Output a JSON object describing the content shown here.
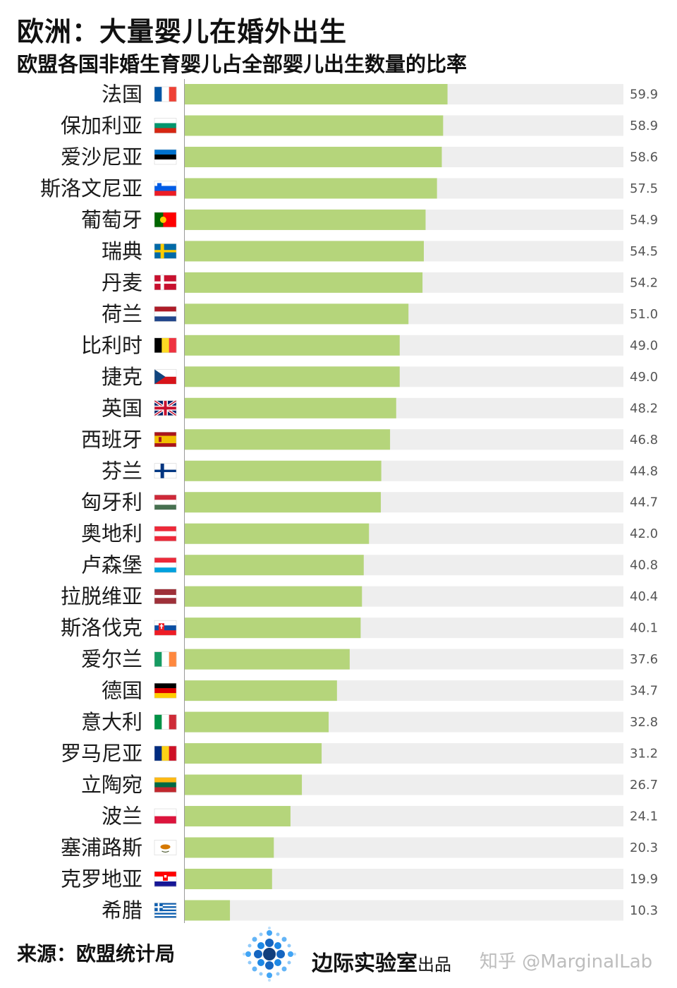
{
  "title": "欧洲：大量婴儿在婚外出生",
  "subtitle": "欧盟各国非婚生育婴儿占全部婴儿出生数量的比率",
  "chart_data": {
    "type": "bar",
    "orientation": "horizontal",
    "title": "欧盟各国非婚生育婴儿占全部婴儿出生数量的比率",
    "xlim": [
      0,
      100
    ],
    "bar_color": "#b5d57b",
    "track_color": "#eeeeee",
    "categories": [
      "法国",
      "保加利亚",
      "爱沙尼亚",
      "斯洛文尼亚",
      "葡萄牙",
      "瑞典",
      "丹麦",
      "荷兰",
      "比利时",
      "捷克",
      "英国",
      "西班牙",
      "芬兰",
      "匈牙利",
      "奥地利",
      "卢森堡",
      "拉脱维亚",
      "斯洛伐克",
      "爱尔兰",
      "德国",
      "意大利",
      "罗马尼亚",
      "立陶宛",
      "波兰",
      "塞浦路斯",
      "克罗地亚",
      "希腊"
    ],
    "value_labels": [
      "59.9",
      "58.9",
      "58.6",
      "57.5",
      "54.9",
      "54.5",
      "54.2",
      "51.0",
      "49.0",
      "49.0",
      "48.2",
      "46.8",
      "44.8",
      "44.7",
      "42.0",
      "40.8",
      "40.4",
      "40.1",
      "37.6",
      "34.7",
      "32.8",
      "31.2",
      "26.7",
      "24.1",
      "20.3",
      "19.9",
      "10.3"
    ],
    "values": [
      59.9,
      58.9,
      58.6,
      57.5,
      54.9,
      54.5,
      54.2,
      51.0,
      49.0,
      49.0,
      48.2,
      46.8,
      44.8,
      44.7,
      42.0,
      40.8,
      40.4,
      40.1,
      37.6,
      34.7,
      32.8,
      31.2,
      26.7,
      24.1,
      20.3,
      19.9,
      10.3
    ],
    "flags": [
      "france",
      "bulgaria",
      "estonia",
      "slovenia",
      "portugal",
      "sweden",
      "denmark",
      "netherlands",
      "belgium",
      "czech",
      "uk",
      "spain",
      "finland",
      "hungary",
      "austria",
      "luxembourg",
      "latvia",
      "slovakia",
      "ireland",
      "germany",
      "italy",
      "romania",
      "lithuania",
      "poland",
      "cyprus",
      "croatia",
      "greece"
    ]
  },
  "footer": {
    "source": "来源：欧盟统计局",
    "brand": "边际实验室",
    "brand_suffix": "出品",
    "watermark": "知乎 @MarginalLab"
  }
}
